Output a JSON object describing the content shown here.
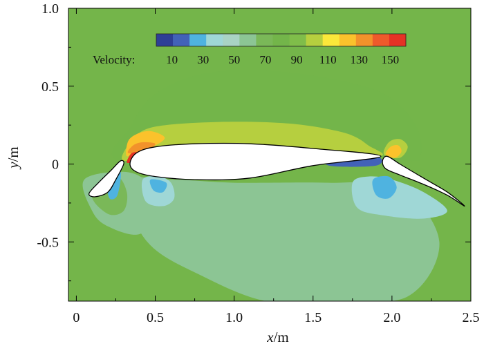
{
  "chart_data": {
    "type": "contour",
    "title": "",
    "xlabel_var": "x",
    "xlabel_unit": "/m",
    "ylabel_var": "y",
    "ylabel_unit": "/m",
    "xlim": [
      -0.05,
      2.5
    ],
    "ylim": [
      -0.88,
      1.0
    ],
    "x_ticks": [
      0,
      0.5,
      1.0,
      1.5,
      2.0,
      2.5
    ],
    "x_tick_labels": [
      "0",
      "0.5",
      "1.0",
      "1.5",
      "2.0",
      "2.5"
    ],
    "y_ticks": [
      -0.5,
      0,
      0.5,
      1.0
    ],
    "y_tick_labels": [
      "-0.5",
      "0",
      "0.5",
      "1.0"
    ],
    "colorbar": {
      "label": "Velocity:",
      "min": 0,
      "max": 160,
      "tick_values": [
        10,
        30,
        50,
        70,
        90,
        110,
        130,
        150
      ],
      "tick_labels": [
        "10",
        "30",
        "50",
        "70",
        "90",
        "110",
        "130",
        "150"
      ],
      "colors": [
        "#2e3f96",
        "#4262b8",
        "#4fb3e0",
        "#9fd7d6",
        "#a9d3c4",
        "#8cc594",
        "#7ab858",
        "#73b54a",
        "#7fbd4a",
        "#b6cf3f",
        "#fbe83a",
        "#fbc22c",
        "#f2922b",
        "#ee5a2b",
        "#e53225"
      ]
    },
    "background_color": "#74b54a",
    "contour_regions": [
      {
        "level": 80,
        "pts": [
          [
            0.28,
            0.02
          ],
          [
            0.35,
            0.25
          ],
          [
            0.5,
            0.45
          ],
          [
            0.8,
            0.58
          ],
          [
            1.2,
            0.6
          ],
          [
            1.6,
            0.55
          ],
          [
            1.95,
            0.45
          ],
          [
            2.15,
            0.25
          ],
          [
            2.18,
            0.05
          ],
          [
            2.05,
            0.02
          ],
          [
            1.2,
            0.06
          ]
        ]
      },
      {
        "level": 100,
        "pts": [
          [
            0.3,
            0.02
          ],
          [
            0.36,
            0.16
          ],
          [
            0.5,
            0.24
          ],
          [
            0.9,
            0.27
          ],
          [
            1.35,
            0.26
          ],
          [
            1.7,
            0.2
          ],
          [
            1.85,
            0.12
          ],
          [
            1.9,
            0.05
          ],
          [
            1.2,
            0.1
          ],
          [
            0.6,
            0.1
          ]
        ]
      },
      {
        "level": 120,
        "pts": [
          [
            0.32,
            0.05
          ],
          [
            0.33,
            0.15
          ],
          [
            0.4,
            0.2
          ],
          [
            0.48,
            0.21
          ],
          [
            0.56,
            0.17
          ],
          [
            0.5,
            0.12
          ],
          [
            0.4,
            0.1
          ]
        ]
      },
      {
        "level": 130,
        "pts": [
          [
            0.33,
            0.07
          ],
          [
            0.36,
            0.12
          ],
          [
            0.42,
            0.14
          ],
          [
            0.5,
            0.13
          ],
          [
            0.45,
            0.09
          ]
        ]
      },
      {
        "level": 150,
        "pts": [
          [
            0.32,
            0.01
          ],
          [
            0.35,
            0.07
          ],
          [
            0.4,
            0.07
          ],
          [
            0.37,
            0.02
          ]
        ]
      },
      {
        "level": 100,
        "pts": [
          [
            1.95,
            0.06
          ],
          [
            1.98,
            0.14
          ],
          [
            2.05,
            0.16
          ],
          [
            2.1,
            0.11
          ],
          [
            2.05,
            0.04
          ]
        ]
      },
      {
        "level": 120,
        "pts": [
          [
            1.96,
            0.06
          ],
          [
            1.99,
            0.11
          ],
          [
            2.04,
            0.12
          ],
          [
            2.06,
            0.08
          ],
          [
            2.02,
            0.04
          ]
        ]
      },
      {
        "level": 55,
        "pts": [
          [
            0.3,
            -0.12
          ],
          [
            0.45,
            -0.5
          ],
          [
            0.8,
            -0.72
          ],
          [
            1.2,
            -0.88
          ],
          [
            1.6,
            -0.88
          ],
          [
            2.1,
            -0.85
          ],
          [
            2.3,
            -0.5
          ],
          [
            2.05,
            -0.15
          ],
          [
            1.6,
            -0.12
          ],
          [
            1.0,
            -0.12
          ],
          [
            0.6,
            -0.1
          ]
        ]
      },
      {
        "level": 62,
        "pts": [
          [
            0.05,
            -0.1
          ],
          [
            0.1,
            -0.3
          ],
          [
            0.2,
            -0.4
          ],
          [
            0.4,
            -0.45
          ],
          [
            0.5,
            -0.3
          ],
          [
            0.45,
            -0.12
          ],
          [
            0.3,
            -0.05
          ]
        ]
      },
      {
        "level": 70,
        "pts": [
          [
            0.1,
            -0.2
          ],
          [
            0.2,
            -0.32
          ],
          [
            0.3,
            -0.3
          ],
          [
            0.32,
            -0.18
          ],
          [
            0.25,
            -0.08
          ]
        ]
      },
      {
        "level": 40,
        "pts": [
          [
            0.42,
            -0.1
          ],
          [
            0.44,
            -0.24
          ],
          [
            0.55,
            -0.27
          ],
          [
            0.62,
            -0.22
          ],
          [
            0.6,
            -0.12
          ],
          [
            0.52,
            -0.08
          ]
        ]
      },
      {
        "level": 25,
        "pts": [
          [
            0.47,
            -0.1
          ],
          [
            0.49,
            -0.17
          ],
          [
            0.55,
            -0.18
          ],
          [
            0.57,
            -0.12
          ]
        ]
      },
      {
        "level": 40,
        "pts": [
          [
            1.75,
            -0.12
          ],
          [
            1.78,
            -0.28
          ],
          [
            1.95,
            -0.33
          ],
          [
            2.2,
            -0.35
          ],
          [
            2.35,
            -0.3
          ],
          [
            2.2,
            -0.18
          ],
          [
            2.0,
            -0.1
          ],
          [
            1.85,
            -0.08
          ]
        ]
      },
      {
        "level": 25,
        "pts": [
          [
            1.88,
            -0.1
          ],
          [
            1.9,
            -0.2
          ],
          [
            1.98,
            -0.22
          ],
          [
            2.03,
            -0.15
          ],
          [
            1.98,
            -0.08
          ]
        ]
      },
      {
        "level": 20,
        "pts": [
          [
            1.6,
            -0.01
          ],
          [
            1.6,
            0.06
          ],
          [
            1.9,
            0.05
          ],
          [
            1.9,
            -0.01
          ]
        ]
      },
      {
        "level": 25,
        "pts": [
          [
            0.2,
            -0.12
          ],
          [
            0.21,
            -0.22
          ],
          [
            0.26,
            -0.2
          ],
          [
            0.28,
            -0.05
          ]
        ]
      }
    ],
    "airfoils": [
      {
        "name": "slat",
        "pts": [
          [
            0.3,
            0.0
          ],
          [
            0.25,
            -0.1
          ],
          [
            0.2,
            -0.18
          ],
          [
            0.12,
            -0.21
          ],
          [
            0.08,
            -0.19
          ],
          [
            0.14,
            -0.12
          ],
          [
            0.22,
            -0.04
          ],
          [
            0.28,
            0.02
          ]
        ]
      },
      {
        "name": "main-element",
        "pts": [
          [
            0.34,
            0.0
          ],
          [
            0.38,
            0.07
          ],
          [
            0.5,
            0.11
          ],
          [
            0.75,
            0.13
          ],
          [
            1.1,
            0.13
          ],
          [
            1.5,
            0.1
          ],
          [
            1.93,
            0.05
          ],
          [
            1.5,
            -0.01
          ],
          [
            1.1,
            -0.09
          ],
          [
            0.75,
            -0.1
          ],
          [
            0.5,
            -0.08
          ],
          [
            0.38,
            -0.05
          ]
        ]
      },
      {
        "name": "flap",
        "pts": [
          [
            1.94,
            0.02
          ],
          [
            1.97,
            0.05
          ],
          [
            2.05,
            0.0
          ],
          [
            2.2,
            -0.09
          ],
          [
            2.35,
            -0.18
          ],
          [
            2.46,
            -0.27
          ],
          [
            2.35,
            -0.2
          ],
          [
            2.2,
            -0.13
          ],
          [
            2.05,
            -0.07
          ],
          [
            1.96,
            -0.03
          ]
        ]
      }
    ]
  }
}
